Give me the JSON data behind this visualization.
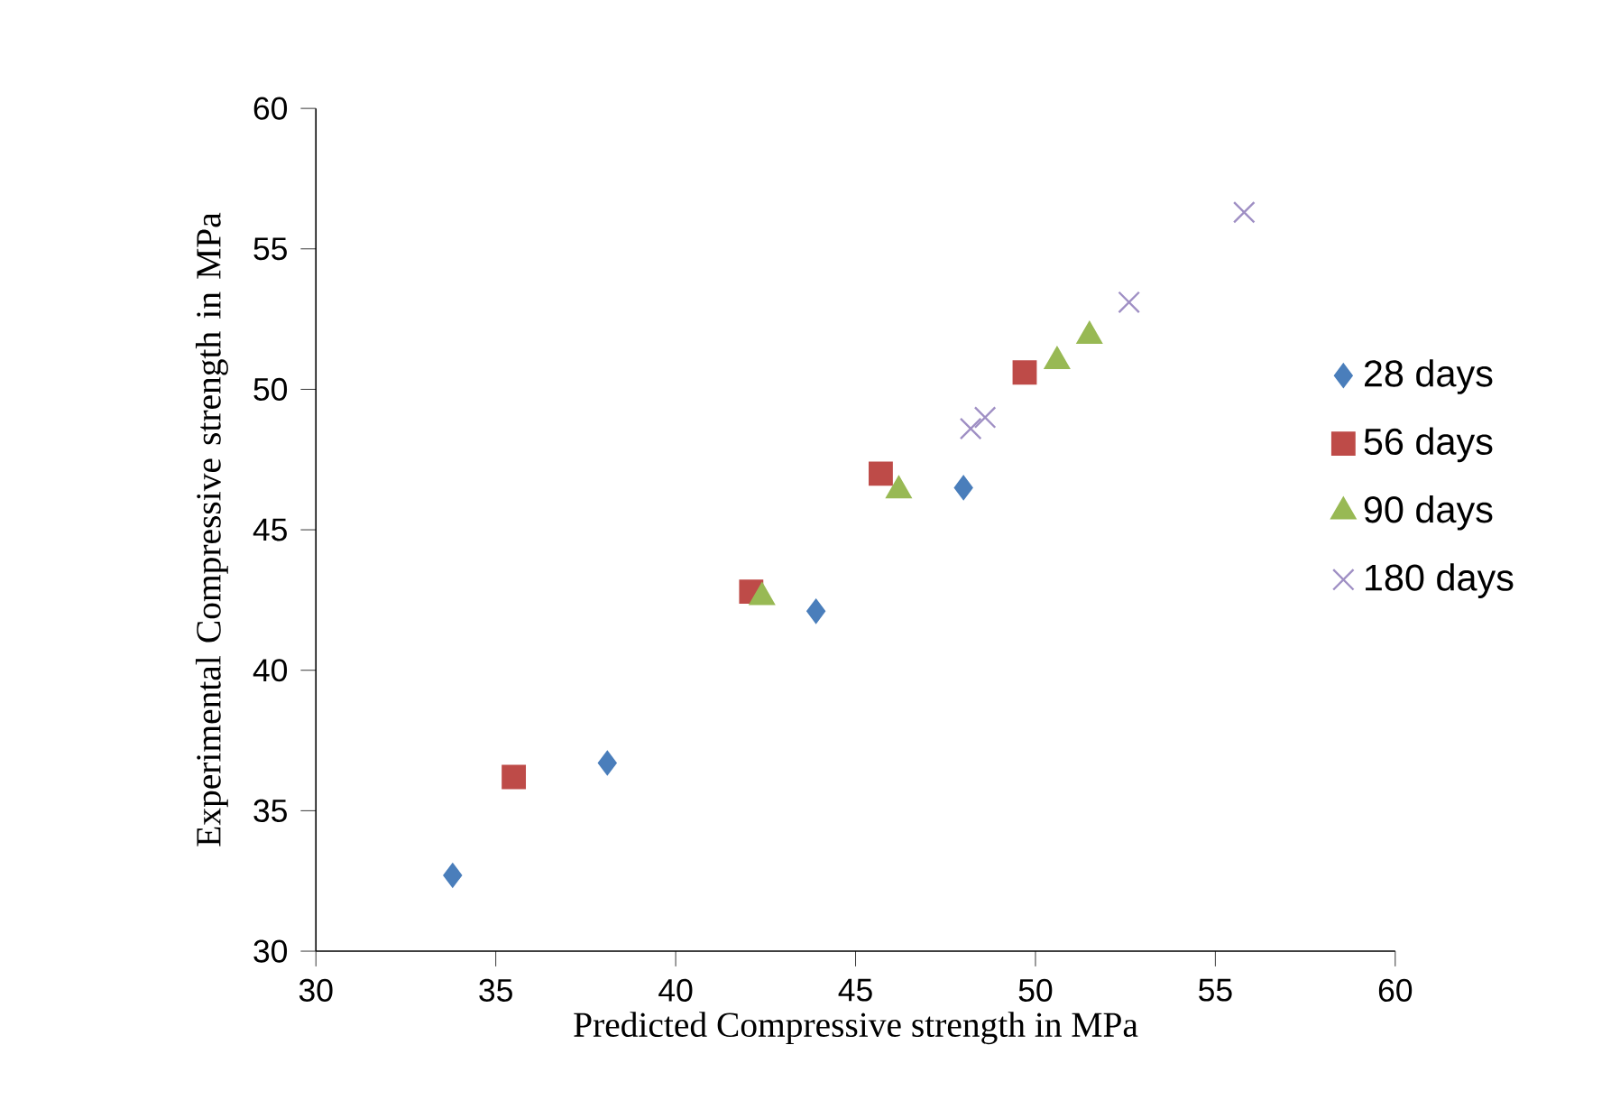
{
  "chart_data": {
    "type": "scatter",
    "xlabel": "Predicted Compressive strength in MPa",
    "ylabel": "Experimental Compressive strength in MPa",
    "xlim": [
      30,
      60
    ],
    "ylim": [
      30,
      60
    ],
    "xticks": [
      30,
      35,
      40,
      45,
      50,
      55,
      60
    ],
    "yticks": [
      30,
      35,
      40,
      45,
      50,
      55,
      60
    ],
    "legend": "right",
    "grid": false,
    "series": [
      {
        "name": "28 days",
        "color": "#4a7ebb",
        "marker": "diamond",
        "x": [
          33.8,
          38.1,
          43.9,
          48.0
        ],
        "values": [
          32.7,
          36.7,
          42.1,
          46.5
        ]
      },
      {
        "name": "56 days",
        "color": "#be4b48",
        "marker": "square",
        "x": [
          35.5,
          42.1,
          45.7,
          49.7
        ],
        "values": [
          36.2,
          42.8,
          47.0,
          50.6
        ]
      },
      {
        "name": "90 days",
        "color": "#98b954",
        "marker": "triangle",
        "x": [
          42.4,
          46.2,
          50.6,
          51.5
        ],
        "values": [
          42.6,
          46.4,
          51.0,
          51.9
        ]
      },
      {
        "name": "180 days",
        "color": "#9f8fc4",
        "marker": "cross",
        "x": [
          48.2,
          48.6,
          52.6,
          55.8
        ],
        "values": [
          48.6,
          49.0,
          53.1,
          56.3
        ]
      }
    ]
  }
}
